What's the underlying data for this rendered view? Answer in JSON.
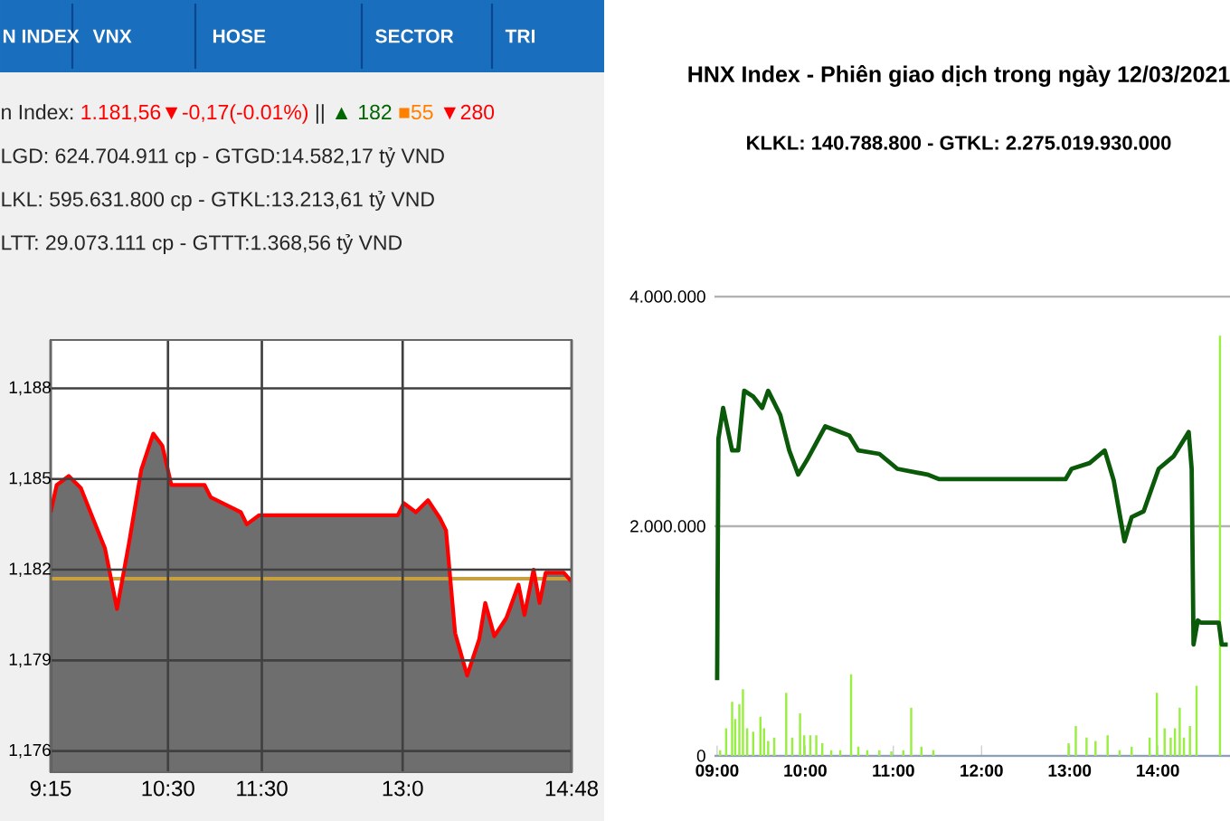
{
  "chart_data": [
    {
      "type": "area",
      "annotations": [
        "N INDEX",
        "VNX",
        "HOSE",
        "SECTOR",
        "TRI",
        "n Index:",
        "1.181,56▼-0,17(-0.01%)",
        "||",
        "▲ 182",
        "■55",
        "▼280",
        "LGD: 624.704.911 cp - GTGD:14.582,17 tỷ VND",
        "LKL: 595.631.800 cp - GTKL:13.213,61 tỷ VND",
        "LTT: 29.073.111 cp - GTTT:1.368,56 tỷ VND"
      ],
      "x": [
        9.25,
        9.314,
        9.443,
        9.572,
        9.7,
        9.829,
        9.957,
        10.086,
        10.215,
        10.343,
        10.44,
        10.536,
        10.89,
        10.954,
        11.276,
        11.34,
        11.469,
        12.948,
        13.012,
        13.141,
        13.27,
        13.398,
        13.462,
        13.559,
        13.687,
        13.816,
        13.88,
        13.977,
        14.105,
        14.234,
        14.298,
        14.395,
        14.459,
        14.524,
        14.717,
        14.8
      ],
      "values": [
        1183.9,
        1184.8,
        1185.1,
        1184.7,
        1183.7,
        1182.7,
        1180.7,
        1182.9,
        1185.3,
        1186.5,
        1186.1,
        1184.8,
        1184.8,
        1184.4,
        1183.9,
        1183.5,
        1183.8,
        1183.8,
        1184.2,
        1183.9,
        1184.3,
        1183.7,
        1183.3,
        1179.9,
        1178.5,
        1179.7,
        1180.9,
        1179.8,
        1180.4,
        1181.5,
        1180.5,
        1182.0,
        1180.9,
        1181.9,
        1181.9,
        1181.6
      ],
      "color": "#ff0000",
      "xlim": [
        9.25,
        14.8
      ],
      "ylim": [
        1175.3,
        1189.6
      ],
      "xticks": [
        {
          "value": 9.25,
          "label": "9:15"
        },
        {
          "value": 10.5,
          "label": "10:30"
        },
        {
          "value": 11.5,
          "label": "11:30"
        },
        {
          "value": 13,
          "label": "13:0"
        },
        {
          "value": 14.8,
          "label": "14:48"
        }
      ],
      "yticks": [
        {
          "value": 1176,
          "label": "1,176"
        },
        {
          "value": 1179,
          "label": "1,179"
        },
        {
          "value": 1182,
          "label": "1,182"
        },
        {
          "value": 1185,
          "label": "1,185"
        },
        {
          "value": 1188,
          "label": "1,188"
        }
      ],
      "grid": true,
      "ref_lines": [
        {
          "axis": "y",
          "value": 1181.7,
          "color": "#c8a040"
        }
      ]
    },
    {
      "type": "line",
      "title": "HNX Index - Phiên giao dịch trong ngày 12/03/2021",
      "subtitle": "KLKL: 140.788.800 - GTKL: 2.275.019.930.000",
      "series": [
        {
          "type": "bar",
          "color": "#99ee44",
          "x": [
            9.034,
            9.102,
            9.17,
            9.205,
            9.252,
            9.293,
            9.341,
            9.409,
            9.491,
            9.532,
            9.579,
            9.648,
            9.784,
            9.852,
            9.941,
            9.988,
            10.057,
            10.125,
            10.193,
            10.295,
            10.397,
            10.52,
            10.602,
            10.704,
            10.841,
            10.977,
            11.113,
            11.202,
            11.318,
            11.454,
            12.988,
            13.07,
            13.192,
            13.294,
            13.431,
            13.567,
            13.704,
            13.908,
            13.99,
            14.078,
            14.147,
            14.195,
            14.249,
            14.297,
            14.365,
            14.44,
            14.706
          ],
          "values": [
            50000,
            240000,
            470000,
            320000,
            450000,
            580000,
            240000,
            210000,
            340000,
            240000,
            130000,
            160000,
            550000,
            160000,
            370000,
            180000,
            180000,
            180000,
            110000,
            50000,
            50000,
            710000,
            80000,
            50000,
            50000,
            40000,
            50000,
            420000,
            80000,
            50000,
            110000,
            260000,
            160000,
            130000,
            180000,
            50000,
            80000,
            160000,
            550000,
            240000,
            160000,
            240000,
            420000,
            160000,
            260000,
            610000,
            3660000
          ]
        },
        {
          "type": "line",
          "color": "#0a5a0a",
          "x": [
            9.0,
            9.014,
            9.068,
            9.17,
            9.239,
            9.307,
            9.409,
            9.511,
            9.579,
            9.716,
            9.818,
            9.92,
            10.022,
            10.227,
            10.5,
            10.602,
            10.841,
            11.045,
            11.386,
            11.488,
            11.522,
            12.954,
            13.022,
            13.227,
            13.398,
            13.5,
            13.622,
            13.704,
            13.84,
            14.01,
            14.181,
            14.351,
            14.385,
            14.406,
            14.454,
            14.488,
            14.692,
            14.726,
            14.794
          ],
          "values": [
            660000,
            2760000,
            3030000,
            2660000,
            2660000,
            3180000,
            3130000,
            3030000,
            3180000,
            2970000,
            2660000,
            2450000,
            2580000,
            2870000,
            2790000,
            2660000,
            2630000,
            2500000,
            2450000,
            2420000,
            2410000,
            2410000,
            2500000,
            2550000,
            2660000,
            2400000,
            1870000,
            2080000,
            2130000,
            2500000,
            2610000,
            2820000,
            2500000,
            970000,
            1180000,
            1160000,
            1160000,
            970000,
            970000
          ]
        }
      ],
      "xlim": [
        8.97,
        14.82
      ],
      "ylim": [
        0,
        4000000
      ],
      "xticks": [
        {
          "value": 9,
          "label": "09:00"
        },
        {
          "value": 10,
          "label": "10:00"
        },
        {
          "value": 11,
          "label": "11:00"
        },
        {
          "value": 12,
          "label": "12:00"
        },
        {
          "value": 13,
          "label": "13:00"
        },
        {
          "value": 14,
          "label": "14:00"
        }
      ],
      "yticks": [
        0,
        {
          "value": 2000000,
          "label": "2.000.000"
        },
        {
          "value": 4000000,
          "label": "4.000.000"
        }
      ],
      "grid": "y"
    }
  ]
}
